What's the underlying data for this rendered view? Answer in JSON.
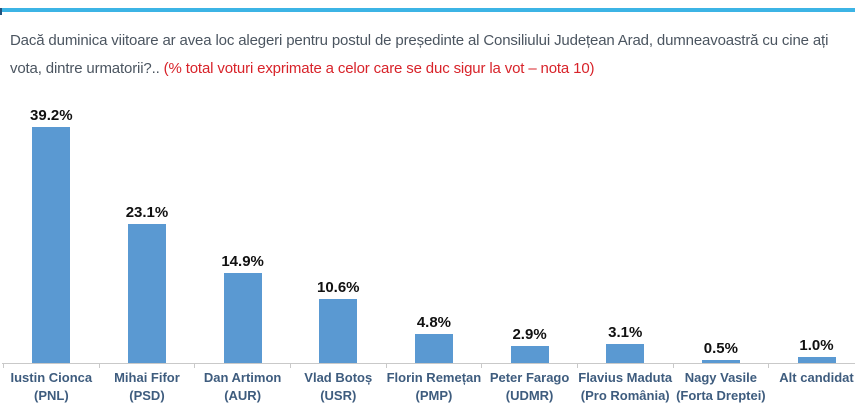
{
  "header": {
    "accent_line_color": "#3cb4e5",
    "title_line1": "Dacă duminica viitoare ar avea loc alegeri pentru postul de președinte al Consiliului Județean Arad, dumneavoastră cu cine ați",
    "title_line2": "vota, dintre urmatorii?.. ",
    "title_note": "(% total voturi exprimate a celor care se duc sigur la vot – nota 10)",
    "title_color": "#4b5560",
    "note_color": "#d8232a"
  },
  "chart_data": {
    "type": "bar",
    "title": "",
    "xlabel": "",
    "ylabel": "",
    "categories": [
      "Iustin Cionca (PNL)",
      "Mihai Fifor (PSD)",
      "Dan Artimon (AUR)",
      "Vlad Botoș (USR)",
      "Florin Remețan (PMP)",
      "Peter Farago (UDMR)",
      "Flavius Maduta (Pro România)",
      "Nagy Vasile (Forta Dreptei)",
      "Alt candidat"
    ],
    "values": [
      39.2,
      23.1,
      14.9,
      10.6,
      4.8,
      2.9,
      3.1,
      0.5,
      1.0
    ],
    "value_labels": [
      "39.2%",
      "23.1%",
      "14.9%",
      "10.6%",
      "4.8%",
      "2.9%",
      "3.1%",
      "0.5%",
      "1.0%"
    ],
    "bar_color": "#5a99d2",
    "axis_color": "#c9c9c9",
    "category_label_color": "#3e5c7e",
    "value_label_color": "#111111",
    "ylim": [
      0,
      40
    ],
    "grid": false,
    "legend": false
  }
}
